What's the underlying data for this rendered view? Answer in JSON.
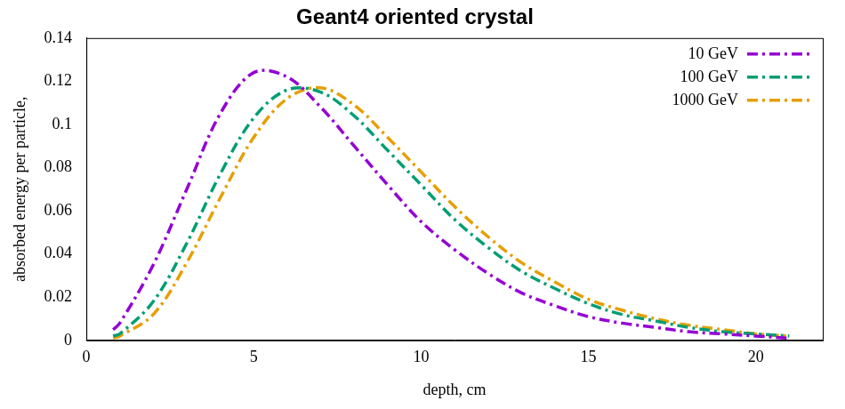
{
  "chart_data": {
    "type": "line",
    "title": "Geant4 oriented crystal",
    "x_label": "depth, cm",
    "y_label": "absorbed energy per particle,",
    "x": [
      0.8,
      1,
      2,
      3,
      4,
      5,
      6,
      7,
      8,
      9,
      10,
      11,
      12,
      13,
      14,
      15,
      16,
      17,
      18,
      19,
      20,
      21
    ],
    "series": [
      {
        "name": "10 GeV",
        "color": "#9400d3",
        "line_style": "dashdot",
        "values": [
          0.005,
          0.008,
          0.035,
          0.07,
          0.105,
          0.124,
          0.122,
          0.108,
          0.09,
          0.072,
          0.055,
          0.042,
          0.031,
          0.022,
          0.016,
          0.011,
          0.008,
          0.006,
          0.004,
          0.003,
          0.002,
          0.001
        ]
      },
      {
        "name": "100 GeV",
        "color": "#009e73",
        "line_style": "dashdot",
        "values": [
          0.002,
          0.003,
          0.018,
          0.045,
          0.077,
          0.103,
          0.116,
          0.115,
          0.104,
          0.088,
          0.072,
          0.056,
          0.043,
          0.032,
          0.024,
          0.017,
          0.012,
          0.009,
          0.006,
          0.004,
          0.003,
          0.002
        ]
      },
      {
        "name": "1000 GeV",
        "color": "#e69f00",
        "line_style": "dashdot",
        "values": [
          0.001,
          0.002,
          0.012,
          0.036,
          0.066,
          0.094,
          0.112,
          0.117,
          0.109,
          0.094,
          0.078,
          0.062,
          0.048,
          0.036,
          0.027,
          0.019,
          0.014,
          0.01,
          0.007,
          0.005,
          0.003,
          0.002
        ]
      }
    ],
    "xlim": [
      0,
      22
    ],
    "xticks": [
      0,
      5,
      10,
      15,
      20
    ],
    "ylim": [
      0,
      0.14
    ],
    "yticks": [
      0,
      0.02,
      0.04,
      0.06,
      0.08,
      0.1,
      0.12,
      0.14
    ],
    "grid": false,
    "legend": "top-right"
  }
}
